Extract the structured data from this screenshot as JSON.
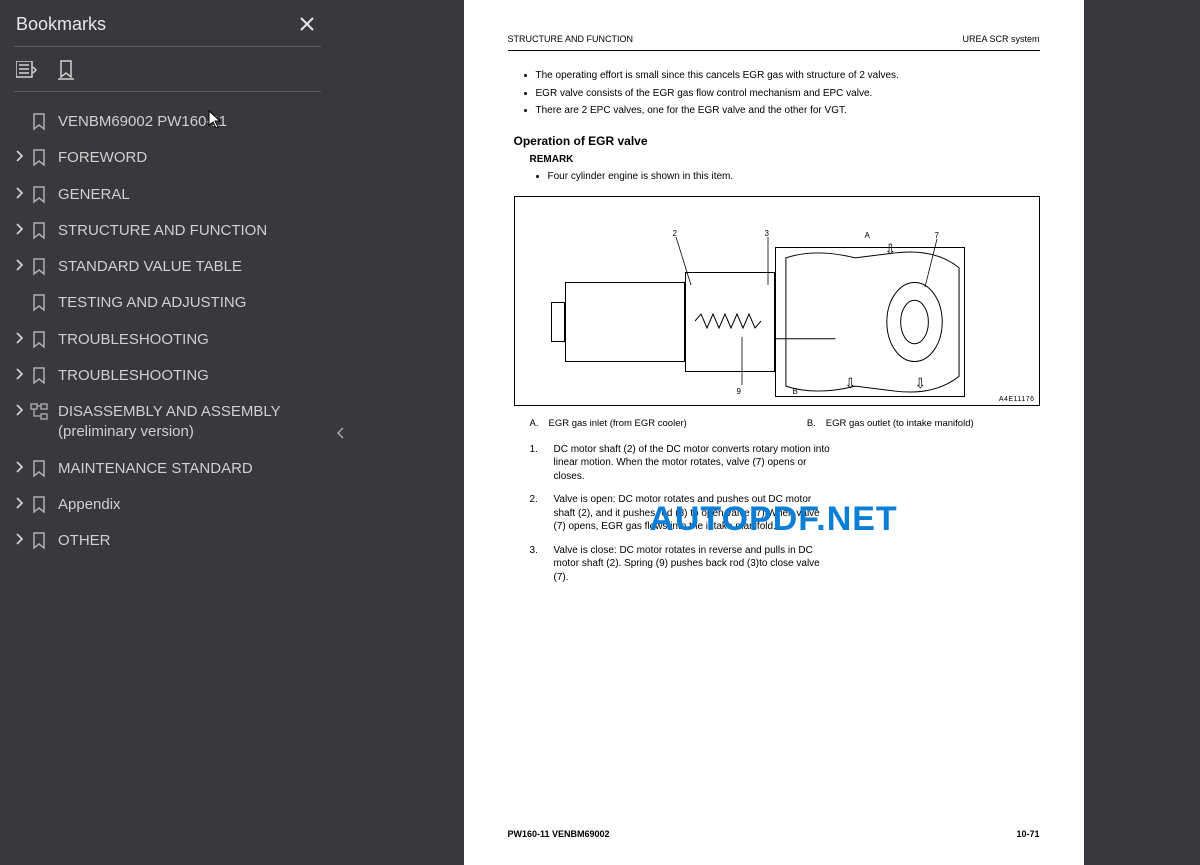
{
  "sidebar": {
    "title": "Bookmarks",
    "items": [
      {
        "label": "VENBM69002 PW160-11",
        "expandable": false
      },
      {
        "label": "FOREWORD",
        "expandable": true
      },
      {
        "label": "GENERAL",
        "expandable": true
      },
      {
        "label": "STRUCTURE AND FUNCTION",
        "expandable": true
      },
      {
        "label": "STANDARD VALUE TABLE",
        "expandable": true
      },
      {
        "label": "TESTING AND ADJUSTING",
        "expandable": false
      },
      {
        "label": "TROUBLESHOOTING",
        "expandable": true
      },
      {
        "label": "TROUBLESHOOTING",
        "expandable": true
      },
      {
        "label": "DISASSEMBLY AND ASSEMBLY (preliminary version)",
        "expandable": true,
        "tree": true
      },
      {
        "label": "MAINTENANCE STANDARD",
        "expandable": true
      },
      {
        "label": "Appendix",
        "expandable": true
      },
      {
        "label": "OTHER",
        "expandable": true
      }
    ]
  },
  "watermark": "AUTOPDF.NET",
  "page": {
    "header_left": "STRUCTURE AND FUNCTION",
    "header_right": "UREA SCR system",
    "bullets": [
      "The operating effort is small since this cancels EGR gas with structure of 2 valves.",
      "EGR valve consists of the EGR gas flow control mechanism and EPC valve.",
      "There are 2 EPC valves, one for the EGR valve and the other for VGT."
    ],
    "section_title": "Operation of EGR valve",
    "remark_label": "REMARK",
    "remark_items": [
      "Four cylinder engine is shown in this item."
    ],
    "diagram": {
      "labels": {
        "l2": "2",
        "l3": "3",
        "lA": "A",
        "l7": "7",
        "lB": "B",
        "l9": "9"
      },
      "code": "A4E11176"
    },
    "legend": [
      {
        "key": "A.",
        "text": "EGR gas inlet (from EGR cooler)"
      },
      {
        "key": "B.",
        "text": "EGR gas outlet (to intake manifold)"
      }
    ],
    "numbered": [
      {
        "n": "1.",
        "t": "DC motor shaft (2) of the DC motor converts rotary motion into linear motion. When the motor rotates, valve (7) opens or closes."
      },
      {
        "n": "2.",
        "t": "Valve is open: DC motor rotates and pushes out DC motor shaft (2), and it pushes rod (3) to open valve (7).When valve (7) opens, EGR gas flows into the intake manifold."
      },
      {
        "n": "3.",
        "t": "Valve is close: DC motor rotates in reverse and pulls in DC motor shaft (2). Spring (9) pushes back rod (3)to close valve (7)."
      }
    ],
    "footer_left": "PW160-11   VENBM69002",
    "footer_right": "10-71"
  }
}
